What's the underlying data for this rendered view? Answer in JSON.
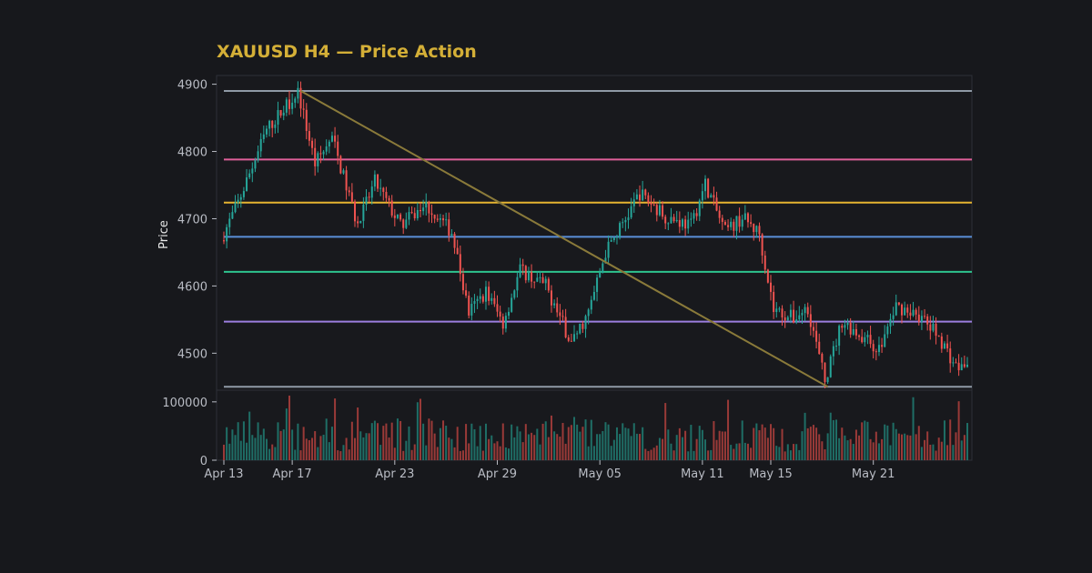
{
  "chart_data": {
    "type": "candlestick",
    "title": "XAUUSD H4 — Price Action",
    "ylabel": "Price",
    "xlabel": "",
    "ylim": [
      4445,
      4913
    ],
    "volume_ylim": [
      0,
      120000
    ],
    "y_ticks": [
      4500,
      4600,
      4700,
      4800,
      4900
    ],
    "volume_ticks": [
      0,
      100000
    ],
    "x_ticks": [
      {
        "date": "2025-04-13",
        "label": "Apr 13"
      },
      {
        "date": "2025-04-17",
        "label": "Apr 17"
      },
      {
        "date": "2025-04-23",
        "label": "Apr 23"
      },
      {
        "date": "2025-04-29",
        "label": "Apr 29"
      },
      {
        "date": "2025-05-05",
        "label": "May 05"
      },
      {
        "date": "2025-05-11",
        "label": "May 11"
      },
      {
        "date": "2025-05-15",
        "label": "May 15"
      },
      {
        "date": "2025-05-21",
        "label": "May 21"
      }
    ],
    "xlim": [
      "2025-04-13T00:00",
      "2025-05-26T12:00"
    ],
    "candle_interval_hours": 4,
    "colors": {
      "up": "#26a69a",
      "down": "#ef5350",
      "trendline": "#8a7a3a",
      "title": "#d4af37",
      "background": "#17181c",
      "panel_border": "#2e3038"
    },
    "levels": [
      {
        "price": 4890,
        "color": "#8f9aa6"
      },
      {
        "price": 4788,
        "color": "#e0609a"
      },
      {
        "price": 4724,
        "color": "#e6b430"
      },
      {
        "price": 4673,
        "color": "#5a8fd8"
      },
      {
        "price": 4621,
        "color": "#2ec48e"
      },
      {
        "price": 4547,
        "color": "#9b7fe0"
      },
      {
        "price": 4450,
        "color": "#8f9aa6"
      }
    ],
    "trendline": {
      "start": {
        "time": "2025-04-17T12:00",
        "price": 4890
      },
      "end": {
        "time": "2025-05-18T08:00",
        "price": 4450
      }
    },
    "anchors": [
      {
        "time": "2025-04-13T00:00",
        "price": 4668
      },
      {
        "time": "2025-04-14T00:00",
        "price": 4724
      },
      {
        "time": "2025-04-15T16:00",
        "price": 4832
      },
      {
        "time": "2025-04-17T12:00",
        "price": 4890
      },
      {
        "time": "2025-04-18T12:00",
        "price": 4782
      },
      {
        "time": "2025-04-19T12:00",
        "price": 4820
      },
      {
        "time": "2025-04-21T00:00",
        "price": 4690
      },
      {
        "time": "2025-04-22T00:00",
        "price": 4755
      },
      {
        "time": "2025-04-23T12:00",
        "price": 4690
      },
      {
        "time": "2025-04-25T00:00",
        "price": 4720
      },
      {
        "time": "2025-04-26T12:00",
        "price": 4680
      },
      {
        "time": "2025-04-27T12:00",
        "price": 4560
      },
      {
        "time": "2025-04-28T12:00",
        "price": 4592
      },
      {
        "time": "2025-04-29T12:00",
        "price": 4545
      },
      {
        "time": "2025-04-30T12:00",
        "price": 4624
      },
      {
        "time": "2025-05-02T00:00",
        "price": 4600
      },
      {
        "time": "2025-05-03T12:00",
        "price": 4515
      },
      {
        "time": "2025-05-04T12:00",
        "price": 4560
      },
      {
        "time": "2025-05-05T12:00",
        "price": 4650
      },
      {
        "time": "2025-05-06T16:00",
        "price": 4700
      },
      {
        "time": "2025-05-07T12:00",
        "price": 4738
      },
      {
        "time": "2025-05-09T00:00",
        "price": 4704
      },
      {
        "time": "2025-05-10T12:00",
        "price": 4690
      },
      {
        "time": "2025-05-11T08:00",
        "price": 4752
      },
      {
        "time": "2025-05-12T12:00",
        "price": 4680
      },
      {
        "time": "2025-05-13T12:00",
        "price": 4702
      },
      {
        "time": "2025-05-14T12:00",
        "price": 4678
      },
      {
        "time": "2025-05-15T08:00",
        "price": 4565
      },
      {
        "time": "2025-05-16T12:00",
        "price": 4552
      },
      {
        "time": "2025-05-17T08:00",
        "price": 4568
      },
      {
        "time": "2025-05-18T08:00",
        "price": 4458
      },
      {
        "time": "2025-05-19T08:00",
        "price": 4548
      },
      {
        "time": "2025-05-20T12:00",
        "price": 4525
      },
      {
        "time": "2025-05-21T12:00",
        "price": 4505
      },
      {
        "time": "2025-05-22T12:00",
        "price": 4570
      },
      {
        "time": "2025-05-23T16:00",
        "price": 4560
      },
      {
        "time": "2025-05-25T00:00",
        "price": 4525
      },
      {
        "time": "2025-05-26T00:00",
        "price": 4480
      }
    ]
  }
}
